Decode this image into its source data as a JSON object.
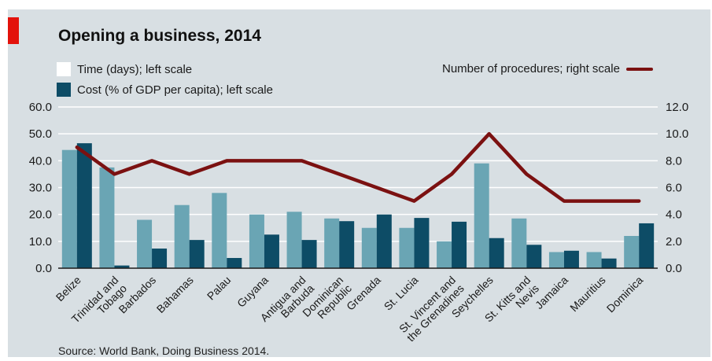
{
  "chart_data": {
    "type": "bar",
    "title": "Opening a business, 2014",
    "source": "Source: World Bank, Doing Business 2014.",
    "categories": [
      "Belize",
      "Trinidad and Tobago",
      "Barbados",
      "Bahamas",
      "Palau",
      "Guyana",
      "Antigua and Barbuda",
      "Dominican Republic",
      "Grenada",
      "St. Lucia",
      "St. Vincent and the Grenadines",
      "Seychelles",
      "St. Kitts and Nevis",
      "Jamaica",
      "Mauritius",
      "Dominica"
    ],
    "category_lines": [
      [
        "Belize"
      ],
      [
        "Trinidad and",
        "Tobago"
      ],
      [
        "Barbados"
      ],
      [
        "Bahamas"
      ],
      [
        "Palau"
      ],
      [
        "Guyana"
      ],
      [
        "Antigua and",
        "Barbuda"
      ],
      [
        "Dominican",
        "Republic"
      ],
      [
        "Grenada"
      ],
      [
        "St. Lucia"
      ],
      [
        "St. Vincent and",
        "the Grenadines"
      ],
      [
        "Seychelles"
      ],
      [
        "St. Kitts and",
        "Nevis"
      ],
      [
        "Jamaica"
      ],
      [
        "Mauritius"
      ],
      [
        "Dominica"
      ]
    ],
    "series": [
      {
        "name": "Time (days); left scale",
        "axis": "left",
        "kind": "bar",
        "color": "#6aa5b4",
        "values": [
          44,
          37.5,
          18,
          23.5,
          28,
          20,
          21,
          18.5,
          15,
          15,
          10,
          39,
          18.5,
          6,
          6,
          12
        ]
      },
      {
        "name": "Cost (% of GDP per capita); left scale",
        "axis": "left",
        "kind": "bar",
        "color": "#0d4c66",
        "values": [
          46.5,
          1,
          7.3,
          10.5,
          3.8,
          12.5,
          10.5,
          17.5,
          20,
          18.7,
          17.3,
          11.2,
          8.7,
          6.5,
          3.6,
          16.7
        ]
      },
      {
        "name": "Number of procedures; right scale",
        "axis": "right",
        "kind": "line",
        "color": "#7b1111",
        "values": [
          9,
          7,
          8,
          7,
          8,
          8,
          8,
          7,
          6,
          5,
          7,
          10,
          7,
          5,
          5,
          5
        ]
      }
    ],
    "left_axis": {
      "ylim": [
        0,
        60
      ],
      "ticks": [
        "0.0",
        "10.0",
        "20.0",
        "30.0",
        "40.0",
        "50.0",
        "60.0"
      ]
    },
    "right_axis": {
      "ylim": [
        0,
        12
      ],
      "ticks": [
        "0.0",
        "2.0",
        "4.0",
        "6.0",
        "8.0",
        "10.0",
        "12.0"
      ]
    },
    "grid": true,
    "legend_placement": "top"
  },
  "colors": {
    "background": "#d8dfe3",
    "grid": "#ffffff",
    "accent": "#e3120b",
    "text": "#1a1a1a"
  }
}
